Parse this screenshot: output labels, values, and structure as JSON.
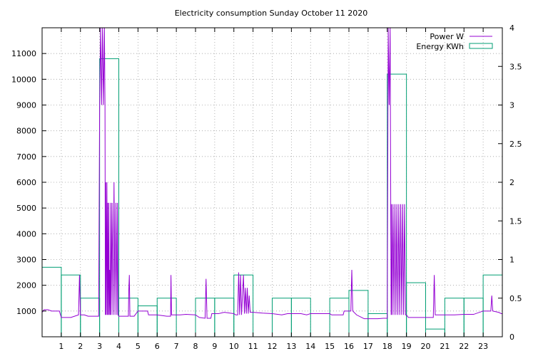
{
  "chart_data": {
    "type": "line",
    "title": "Electricity consumption Sunday October 11 2020",
    "xlim": [
      0,
      24
    ],
    "ylim": [
      0,
      12000
    ],
    "y2lim": [
      0,
      4
    ],
    "x_ticks": [
      1,
      2,
      3,
      4,
      5,
      6,
      7,
      8,
      9,
      10,
      11,
      12,
      13,
      14,
      15,
      16,
      17,
      18,
      19,
      20,
      21,
      22,
      23
    ],
    "y_ticks": [
      1000,
      2000,
      3000,
      4000,
      5000,
      6000,
      7000,
      8000,
      9000,
      10000,
      11000
    ],
    "y2_ticks": [
      0,
      0.5,
      1,
      1.5,
      2,
      2.5,
      3,
      3.5,
      4
    ],
    "y2_tick_labels": [
      "0",
      "0.5",
      "1",
      "1.5",
      "2",
      "2.5",
      "3",
      "3.5",
      "4"
    ],
    "grid": true,
    "legend_position": "top-right",
    "series": [
      {
        "name": "Power W",
        "axis": "y",
        "color": "#9400d3",
        "style": "line",
        "points": [
          [
            0.0,
            950
          ],
          [
            0.1,
            1050
          ],
          [
            0.3,
            1050
          ],
          [
            0.5,
            1000
          ],
          [
            0.9,
            1000
          ],
          [
            1.0,
            750
          ],
          [
            1.5,
            750
          ],
          [
            1.9,
            850
          ],
          [
            1.95,
            2400
          ],
          [
            2.0,
            850
          ],
          [
            2.2,
            850
          ],
          [
            2.4,
            800
          ],
          [
            2.95,
            800
          ],
          [
            3.0,
            9000
          ],
          [
            3.05,
            12000
          ],
          [
            3.1,
            9000
          ],
          [
            3.15,
            12000
          ],
          [
            3.2,
            9000
          ],
          [
            3.25,
            12000
          ],
          [
            3.28,
            9000
          ],
          [
            3.3,
            850
          ],
          [
            3.32,
            6000
          ],
          [
            3.34,
            850
          ],
          [
            3.38,
            6000
          ],
          [
            3.4,
            850
          ],
          [
            3.42,
            5200
          ],
          [
            3.45,
            850
          ],
          [
            3.48,
            5200
          ],
          [
            3.5,
            850
          ],
          [
            3.52,
            2600
          ],
          [
            3.55,
            850
          ],
          [
            3.58,
            5200
          ],
          [
            3.6,
            850
          ],
          [
            3.65,
            5200
          ],
          [
            3.7,
            850
          ],
          [
            3.75,
            6000
          ],
          [
            3.8,
            850
          ],
          [
            3.85,
            5200
          ],
          [
            3.9,
            850
          ],
          [
            3.93,
            5200
          ],
          [
            3.96,
            850
          ],
          [
            4.0,
            800
          ],
          [
            4.5,
            800
          ],
          [
            4.52,
            1800
          ],
          [
            4.55,
            2400
          ],
          [
            4.58,
            800
          ],
          [
            4.8,
            800
          ],
          [
            5.0,
            1000
          ],
          [
            5.5,
            1000
          ],
          [
            5.55,
            850
          ],
          [
            6.0,
            850
          ],
          [
            6.5,
            800
          ],
          [
            6.7,
            800
          ],
          [
            6.72,
            2400
          ],
          [
            6.75,
            850
          ],
          [
            7.2,
            850
          ],
          [
            7.5,
            870
          ],
          [
            8.0,
            850
          ],
          [
            8.2,
            750
          ],
          [
            8.5,
            720
          ],
          [
            8.55,
            2250
          ],
          [
            8.6,
            720
          ],
          [
            8.8,
            720
          ],
          [
            8.85,
            900
          ],
          [
            9.2,
            900
          ],
          [
            9.5,
            950
          ],
          [
            10.0,
            900
          ],
          [
            10.1,
            850
          ],
          [
            10.2,
            850
          ],
          [
            10.25,
            2500
          ],
          [
            10.3,
            850
          ],
          [
            10.35,
            2400
          ],
          [
            10.4,
            850
          ],
          [
            10.5,
            2400
          ],
          [
            10.55,
            900
          ],
          [
            10.6,
            1900
          ],
          [
            10.65,
            900
          ],
          [
            10.7,
            1900
          ],
          [
            10.75,
            900
          ],
          [
            10.8,
            1600
          ],
          [
            10.85,
            950
          ],
          [
            11.0,
            950
          ],
          [
            11.5,
            920
          ],
          [
            12.0,
            900
          ],
          [
            12.5,
            850
          ],
          [
            12.8,
            900
          ],
          [
            13.5,
            900
          ],
          [
            13.8,
            850
          ],
          [
            14.0,
            900
          ],
          [
            15.0,
            900
          ],
          [
            15.1,
            850
          ],
          [
            15.7,
            850
          ],
          [
            15.75,
            1000
          ],
          [
            16.1,
            1000
          ],
          [
            16.15,
            2600
          ],
          [
            16.2,
            1000
          ],
          [
            16.4,
            850
          ],
          [
            16.8,
            700
          ],
          [
            17.5,
            700
          ],
          [
            17.8,
            720
          ],
          [
            18.0,
            720
          ],
          [
            18.05,
            12000
          ],
          [
            18.1,
            9000
          ],
          [
            18.15,
            12000
          ],
          [
            18.2,
            850
          ],
          [
            18.22,
            5150
          ],
          [
            18.25,
            850
          ],
          [
            18.3,
            5150
          ],
          [
            18.35,
            850
          ],
          [
            18.4,
            5150
          ],
          [
            18.45,
            850
          ],
          [
            18.5,
            5150
          ],
          [
            18.55,
            850
          ],
          [
            18.6,
            5150
          ],
          [
            18.65,
            850
          ],
          [
            18.7,
            5150
          ],
          [
            18.75,
            850
          ],
          [
            18.8,
            5150
          ],
          [
            18.85,
            850
          ],
          [
            18.9,
            5150
          ],
          [
            18.95,
            850
          ],
          [
            19.0,
            850
          ],
          [
            19.1,
            750
          ],
          [
            19.5,
            750
          ],
          [
            20.0,
            750
          ],
          [
            20.4,
            750
          ],
          [
            20.45,
            2400
          ],
          [
            20.5,
            850
          ],
          [
            21.0,
            850
          ],
          [
            21.5,
            850
          ],
          [
            22.0,
            870
          ],
          [
            22.5,
            870
          ],
          [
            23.0,
            1000
          ],
          [
            23.4,
            1000
          ],
          [
            23.45,
            1600
          ],
          [
            23.5,
            1000
          ],
          [
            23.8,
            950
          ],
          [
            23.95,
            900
          ],
          [
            24.0,
            900
          ]
        ]
      },
      {
        "name": "Energy KWh",
        "axis": "y2",
        "color": "#009e73",
        "style": "boxes",
        "bins": [
          [
            0,
            0.9
          ],
          [
            1,
            0.8
          ],
          [
            2,
            0.5
          ],
          [
            3,
            3.6
          ],
          [
            4,
            0.5
          ],
          [
            5,
            0.4
          ],
          [
            6,
            0.5
          ],
          [
            7,
            0
          ],
          [
            8,
            0.5
          ],
          [
            9,
            0.5
          ],
          [
            10,
            0.8
          ],
          [
            11,
            0
          ],
          [
            12,
            0.5
          ],
          [
            13,
            0.5
          ],
          [
            14,
            0
          ],
          [
            15,
            0.5
          ],
          [
            16,
            0.6
          ],
          [
            17,
            0.3
          ],
          [
            18,
            3.4
          ],
          [
            19,
            0.7
          ],
          [
            20,
            0.1
          ],
          [
            21,
            0.5
          ],
          [
            22,
            0.5
          ],
          [
            23,
            0.8
          ]
        ]
      }
    ]
  }
}
